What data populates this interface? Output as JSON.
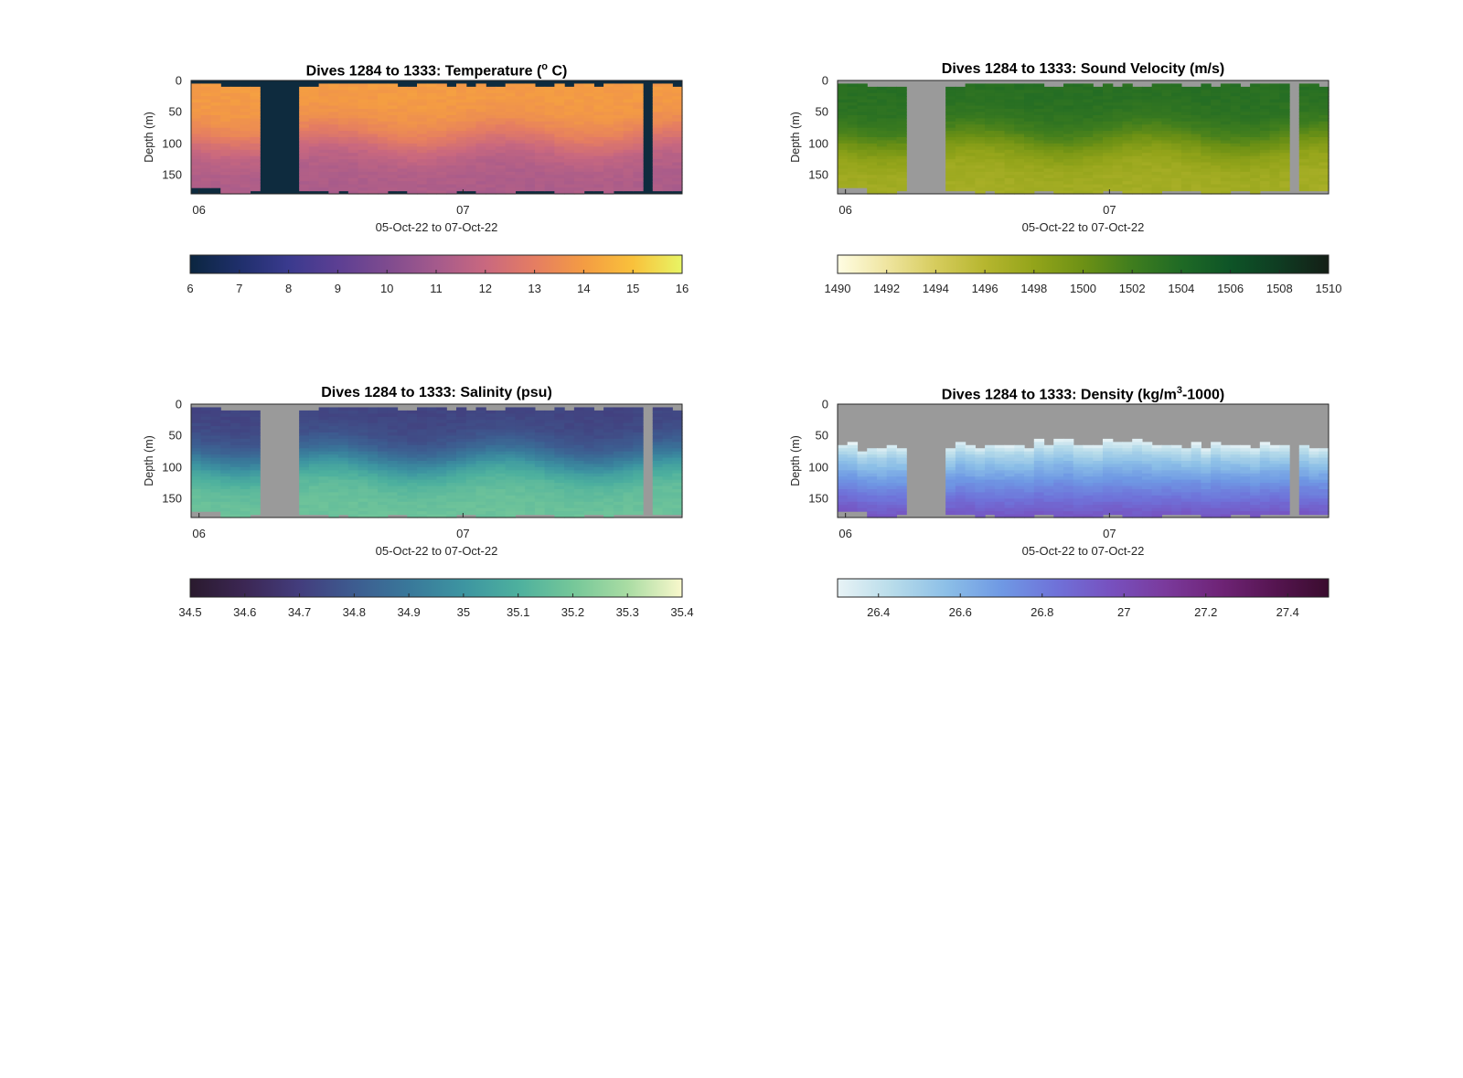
{
  "chart_data": [
    {
      "type": "heatmap",
      "variable": "temperature",
      "title": "Dives 1284 to 1333: Temperature (",
      "title_sup": "o",
      "title_end": " C)",
      "ylabel": "Depth (m)",
      "xlabel": "05-Oct-22 to 07-Oct-22",
      "yticks": [
        "0",
        "50",
        "100",
        "150"
      ],
      "ylim": [
        0,
        180
      ],
      "xticks": [
        {
          "label": "06",
          "day": 6.0
        },
        {
          "label": "07",
          "day": 7.0
        }
      ],
      "xlim": [
        5.97,
        7.83
      ],
      "colorbar": {
        "min": 6,
        "max": 16,
        "ticks": [
          "6",
          "7",
          "8",
          "9",
          "10",
          "11",
          "12",
          "13",
          "14",
          "15",
          "16"
        ],
        "colors": [
          "#0b2640",
          "#1f2f6b",
          "#3a3a8e",
          "#5c3f93",
          "#7e4b8f",
          "#a45a8c",
          "#c9687f",
          "#e57d62",
          "#f49c43",
          "#f9c13b",
          "#e8f565"
        ]
      },
      "nodata_color": "#0e2b3e",
      "surface_value": 14.0,
      "bottom_value": 11.2,
      "thermocline_depth_m": 95
    },
    {
      "type": "heatmap",
      "variable": "sound_velocity",
      "title": "Dives 1284 to 1333: Sound Velocity (m/s)",
      "ylabel": "Depth (m)",
      "xlabel": "05-Oct-22 to 07-Oct-22",
      "yticks": [
        "0",
        "50",
        "100",
        "150"
      ],
      "ylim": [
        0,
        180
      ],
      "xticks": [
        {
          "label": "06",
          "day": 6.0
        },
        {
          "label": "07",
          "day": 7.0
        }
      ],
      "xlim": [
        5.97,
        7.83
      ],
      "colorbar": {
        "min": 1490,
        "max": 1510,
        "ticks": [
          "1490",
          "1492",
          "1494",
          "1496",
          "1498",
          "1500",
          "1502",
          "1504",
          "1506",
          "1508",
          "1510"
        ],
        "colors": [
          "#fffde3",
          "#efe5a0",
          "#d6cc5d",
          "#b6b62f",
          "#93a41a",
          "#6d9115",
          "#3f7d1e",
          "#1f6a25",
          "#0e5427",
          "#0f3c22",
          "#141e16"
        ]
      },
      "nodata_color": "#9a9a9a",
      "surface_value": 1503.5,
      "bottom_value": 1497.0,
      "thermocline_depth_m": 95
    },
    {
      "type": "heatmap",
      "variable": "salinity",
      "title": "Dives 1284 to 1333: Salinity (psu)",
      "ylabel": "Depth (m)",
      "xlabel": "05-Oct-22 to 07-Oct-22",
      "yticks": [
        "0",
        "50",
        "100",
        "150"
      ],
      "ylim": [
        0,
        180
      ],
      "xticks": [
        {
          "label": "06",
          "day": 6.0
        },
        {
          "label": "07",
          "day": 7.0
        }
      ],
      "xlim": [
        5.97,
        7.83
      ],
      "colorbar": {
        "min": 34.5,
        "max": 35.4,
        "ticks": [
          "34.5",
          "34.6",
          "34.7",
          "34.8",
          "34.9",
          "35",
          "35.1",
          "35.2",
          "35.3",
          "35.4"
        ],
        "colors": [
          "#2a1a2e",
          "#3c2754",
          "#433d7d",
          "#3d5c90",
          "#39789a",
          "#3d95a1",
          "#4db09e",
          "#75c799",
          "#a9dca3",
          "#f9f8cc"
        ]
      },
      "nodata_color": "#9a9a9a",
      "surface_value": 34.72,
      "bottom_value": 35.18,
      "thermocline_depth_m": 90
    },
    {
      "type": "heatmap",
      "variable": "density",
      "title": "Dives 1284 to 1333: Density (kg/m",
      "title_sup": "3",
      "title_end": "-1000)",
      "ylabel": "Depth (m)",
      "xlabel": "05-Oct-22 to 07-Oct-22",
      "yticks": [
        "0",
        "50",
        "100",
        "150"
      ],
      "ylim": [
        0,
        180
      ],
      "xticks": [
        {
          "label": "06",
          "day": 6.0
        },
        {
          "label": "07",
          "day": 7.0
        }
      ],
      "xlim": [
        5.97,
        7.83
      ],
      "colorbar": {
        "min": 26.3,
        "max": 27.5,
        "ticks": [
          "26.4",
          "26.6",
          "26.8",
          "27",
          "27.2",
          "27.4"
        ],
        "tick_values": [
          26.4,
          26.6,
          26.8,
          27.0,
          27.2,
          27.4
        ],
        "colors": [
          "#e8f3f6",
          "#b8dcea",
          "#8cbfe7",
          "#6f99e4",
          "#6f72d9",
          "#7751bf",
          "#7a3a9c",
          "#6f2477",
          "#561551",
          "#3a0c2e"
        ]
      },
      "nodata_color": "#9a9a9a",
      "surface_value": 26.3,
      "bottom_value": 26.95,
      "top_of_data_m": 70
    }
  ],
  "dives": {
    "first": 1284,
    "last": 1333,
    "day_start": 5.97,
    "day_end": 7.83,
    "gaps": [
      [
        6.23,
        6.38
      ],
      [
        7.68,
        7.71
      ]
    ],
    "max_depth_m": [
      168,
      170,
      172,
      178,
      180,
      178,
      176,
      175,
      178,
      180,
      179,
      176,
      175,
      176,
      178,
      177,
      178,
      179,
      180,
      178,
      176,
      177,
      178,
      179,
      180,
      179,
      178,
      177,
      176,
      178,
      179,
      180,
      178,
      176,
      175,
      176,
      177,
      178,
      179,
      178,
      177,
      176,
      178,
      177,
      176,
      175,
      174,
      176,
      175,
      176
    ]
  }
}
